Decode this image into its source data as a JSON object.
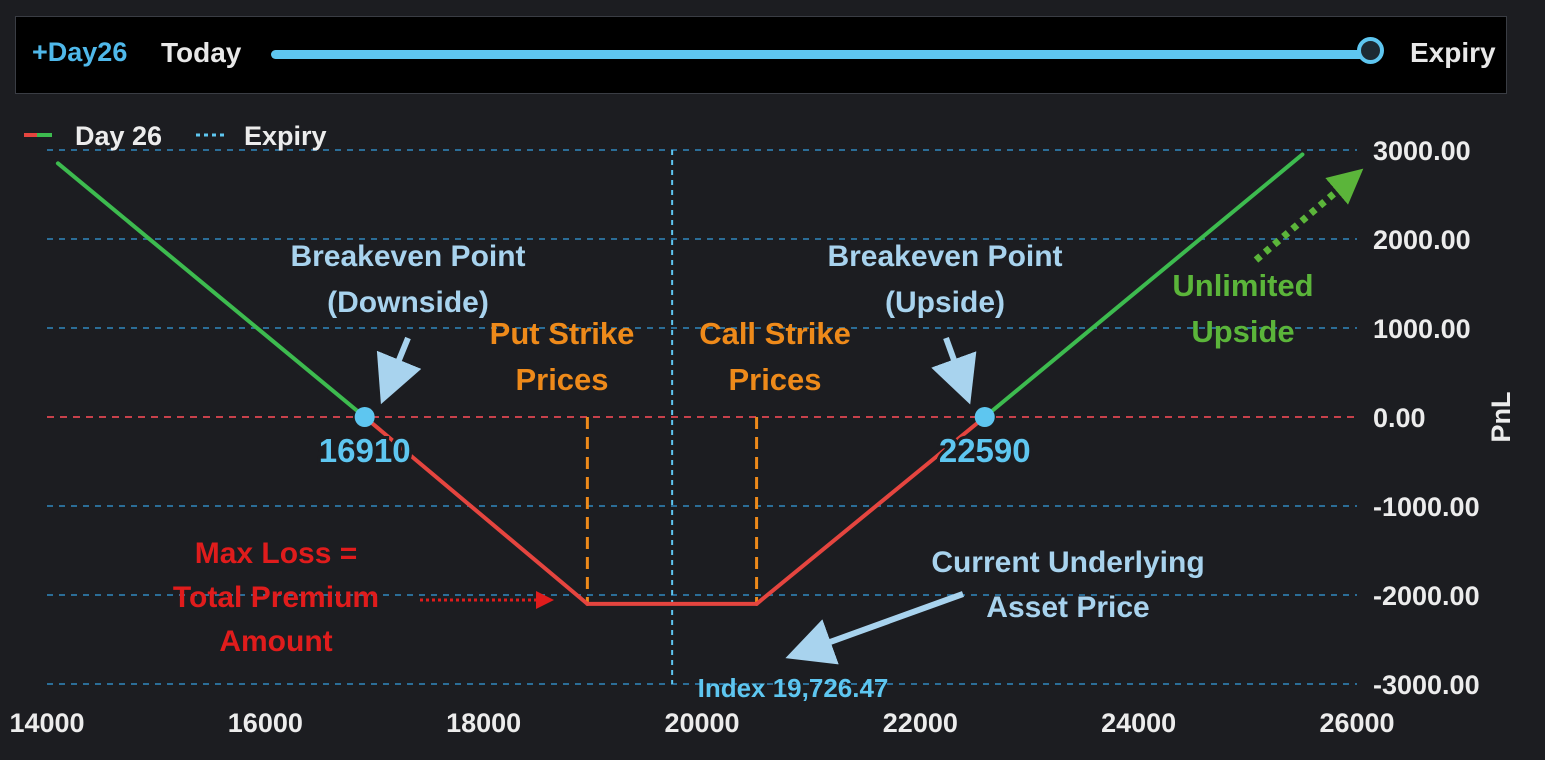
{
  "header": {
    "day_label": "+Day26",
    "today_label": "Today",
    "expiry_label": "Expiry",
    "slider_value": 1.0
  },
  "legend": {
    "items": [
      {
        "label": "Day 26",
        "style": "solid-red-green"
      },
      {
        "label": "Expiry",
        "style": "dotted-blue"
      }
    ]
  },
  "chart_data": {
    "type": "line",
    "xlabel": "",
    "ylabel": "PnL",
    "xlim": [
      14000,
      26000
    ],
    "ylim": [
      -3000,
      3000
    ],
    "x_ticks": [
      "14000",
      "16000",
      "18000",
      "20000",
      "22000",
      "24000",
      "26000"
    ],
    "y_ticks": [
      "3000.00",
      "2000.00",
      "1000.00",
      "0.00",
      "-1000.00",
      "-2000.00",
      "-3000.00"
    ],
    "grid": true,
    "legend_position": "top-left",
    "series": [
      {
        "name": "Day 26",
        "points": [
          [
            14100,
            2850
          ],
          [
            16910,
            0
          ],
          [
            18950,
            -2100
          ],
          [
            20500,
            -2100
          ],
          [
            22590,
            0
          ],
          [
            25500,
            2950
          ]
        ],
        "color_profit": "#3dbb4f",
        "color_loss": "#e5453f"
      }
    ],
    "breakevens": [
      {
        "x": 16910,
        "label": "16910"
      },
      {
        "x": 22590,
        "label": "22590"
      }
    ],
    "strikes": [
      18950,
      20500
    ],
    "current_index": {
      "x": 19726.47,
      "label": "Index 19,726.47"
    },
    "annotations": {
      "breakeven_down": [
        "Breakeven Point",
        "(Downside)"
      ],
      "breakeven_up": [
        "Breakeven Point",
        "(Upside)"
      ],
      "put_strike": [
        "Put Strike",
        "Prices"
      ],
      "call_strike": [
        "Call Strike",
        "Prices"
      ],
      "unlimited": [
        "Unlimited",
        "Upside"
      ],
      "max_loss": [
        "Max Loss =",
        "Total Premium",
        "Amount"
      ],
      "current_price": [
        "Current Underlying",
        "Asset Price"
      ]
    },
    "colors": {
      "grid": "#2b6d97",
      "zero_line": "#c8414b",
      "strike": "#ee8a1a",
      "breakeven_dot": "#5ec6f0",
      "annotation_blue": "#a8d3ee",
      "annotation_orange": "#ee8a1a",
      "annotation_green": "#5bb53a",
      "annotation_red": "#e01c1c",
      "index_text": "#5ec6f0"
    }
  }
}
